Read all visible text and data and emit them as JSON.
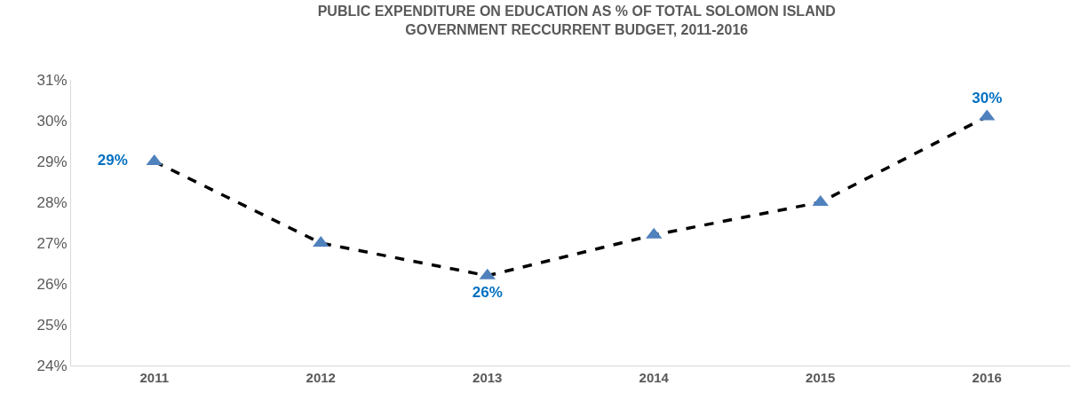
{
  "chart_data": {
    "type": "line",
    "title": "PUBLIC EXPENDITURE ON EDUCATION AS % OF TOTAL SOLOMON ISLAND GOVERNMENT RECCURRENT BUDGET, 2011-2016",
    "categories": [
      "2011",
      "2012",
      "2013",
      "2014",
      "2015",
      "2016"
    ],
    "series": [
      {
        "color": "#4f81bd",
        "values": [
          29.0,
          27.0,
          26.2,
          27.2,
          28.0,
          30.1
        ],
        "value_labels": [
          "29%",
          null,
          "26%",
          null,
          null,
          "30%"
        ]
      }
    ],
    "ylim": [
      24,
      31
    ],
    "yticks": [
      {
        "value": 24,
        "label": "24%"
      },
      {
        "value": 25,
        "label": "25%"
      },
      {
        "value": 26,
        "label": "26%"
      },
      {
        "value": 27,
        "label": "27%"
      },
      {
        "value": 28,
        "label": "28%"
      },
      {
        "value": 29,
        "label": "29%"
      },
      {
        "value": 30,
        "label": "30%"
      },
      {
        "value": 31,
        "label": "31%"
      }
    ],
    "legend": false,
    "marker": "triangle",
    "line_style": "dashed"
  }
}
